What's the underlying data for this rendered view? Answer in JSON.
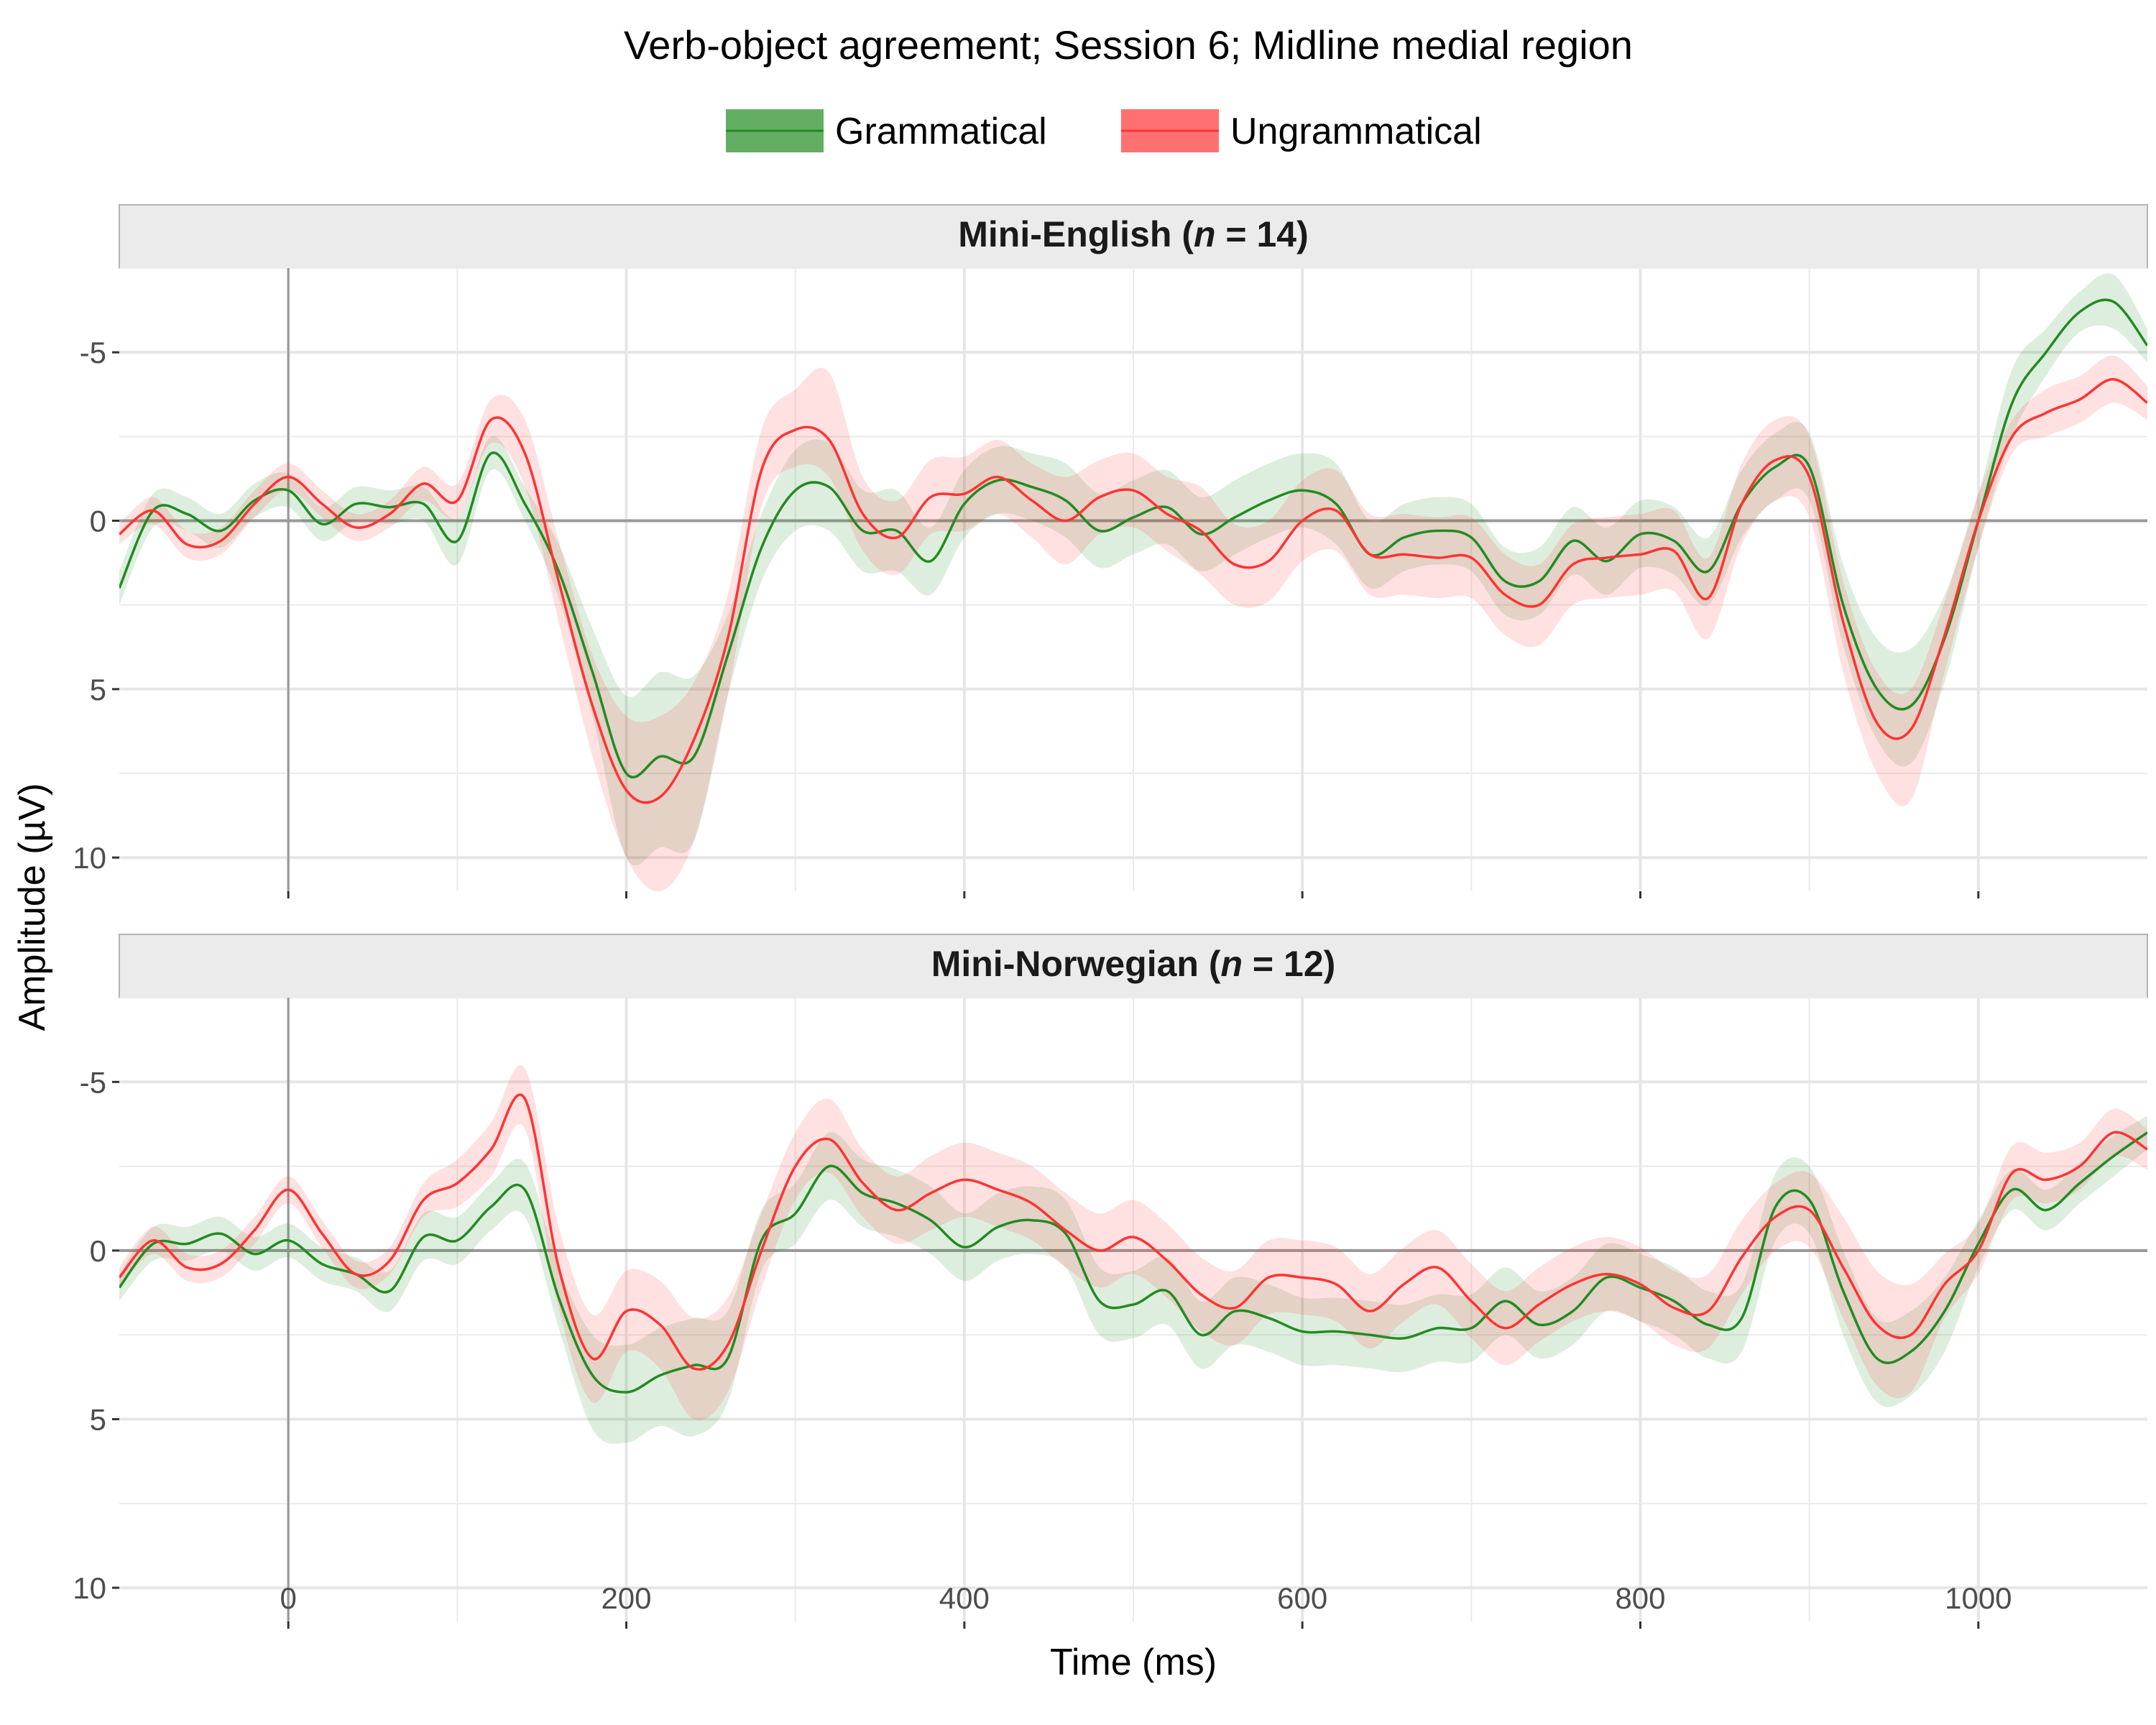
{
  "chart_data": {
    "type": "line",
    "title": "Verb-object agreement; Session 6; Midline medial region",
    "xlabel": "Time (ms)",
    "ylabel": "Amplitude (µV)",
    "xlim": [
      -100,
      1100
    ],
    "ylim_reversed": [
      -7.5,
      11
    ],
    "xticks": [
      "0",
      "200",
      "400",
      "600",
      "800",
      "1000"
    ],
    "yticks": [
      "-5",
      "0",
      "5",
      "10"
    ],
    "legend_position": "top",
    "colors": {
      "Grammatical": "#228B22",
      "Ungrammatical": "#FF3333"
    },
    "series_names": [
      "Grammatical",
      "Ungrammatical"
    ],
    "panels": [
      {
        "strip_prefix": "Mini-English (",
        "strip_n": "n",
        "strip_suffix": " = 14)",
        "x": [
          -100,
          -80,
          -60,
          -40,
          -20,
          0,
          20,
          40,
          60,
          80,
          100,
          120,
          140,
          160,
          180,
          200,
          220,
          240,
          260,
          280,
          300,
          320,
          340,
          360,
          380,
          400,
          420,
          440,
          460,
          480,
          500,
          520,
          540,
          560,
          580,
          600,
          620,
          640,
          660,
          680,
          700,
          720,
          740,
          760,
          780,
          800,
          820,
          840,
          860,
          880,
          900,
          920,
          940,
          960,
          980,
          1000,
          1020,
          1040,
          1060,
          1080,
          1100
        ],
        "series": [
          {
            "name": "Grammatical",
            "values": [
              2,
              -0.3,
              -0.2,
              0.3,
              -0.6,
              -0.9,
              0.1,
              -0.5,
              -0.4,
              -0.5,
              0.6,
              -2,
              -0.5,
              1.5,
              4.5,
              7.5,
              7,
              7,
              4,
              0.8,
              -0.9,
              -1,
              0.3,
              0.3,
              1.2,
              -0.5,
              -1.2,
              -1,
              -0.6,
              0.3,
              -0.1,
              -0.4,
              0.4,
              -0.1,
              -0.6,
              -0.9,
              -0.5,
              1,
              0.5,
              0.3,
              0.5,
              1.8,
              1.8,
              0.6,
              1.2,
              0.4,
              0.6,
              1.5,
              -0.5,
              -1.6,
              -1.6,
              2.5,
              5,
              5.5,
              3.5,
              0,
              -3.5,
              -5,
              -6.2,
              -6.5,
              -5.2
            ],
            "upper": [
              2.5,
              0.2,
              0.3,
              0.8,
              -0.1,
              -0.4,
              0.6,
              0,
              0.1,
              0,
              1.3,
              -1.5,
              0,
              2.3,
              5.8,
              10,
              9.7,
              9.5,
              5.2,
              1.8,
              0.3,
              0.3,
              1.5,
              1.5,
              2.2,
              0.5,
              -0.2,
              0,
              0.5,
              1.4,
              1,
              0.7,
              1.5,
              1,
              0.5,
              0.2,
              0.7,
              2,
              1.5,
              1.3,
              1.5,
              2.8,
              2.8,
              1.6,
              2.2,
              1.4,
              1.6,
              2.5,
              0.5,
              -0.6,
              -0.6,
              3.7,
              6.5,
              7.2,
              4.8,
              0.8,
              -2.5,
              -4.3,
              -5.6,
              -5.7,
              -4.7
            ],
            "lower": [
              1.5,
              -0.8,
              -0.7,
              -0.2,
              -1.1,
              -1.4,
              -0.4,
              -1,
              -0.9,
              -1,
              -0.1,
              -2.5,
              -1,
              0.7,
              3.2,
              5.2,
              4.5,
              4.6,
              2.8,
              -0.2,
              -2.1,
              -2.3,
              -0.9,
              -0.9,
              0.2,
              -1.5,
              -2.2,
              -2,
              -1.7,
              -0.8,
              -1.2,
              -1.5,
              -0.7,
              -1.2,
              -1.7,
              -2,
              -1.7,
              0,
              -0.5,
              -0.7,
              -0.5,
              0.8,
              0.8,
              -0.4,
              0.2,
              -0.6,
              -0.4,
              0.5,
              -1.5,
              -2.6,
              -2.6,
              1.3,
              3.5,
              3.8,
              2.2,
              -0.8,
              -4.5,
              -5.7,
              -6.8,
              -7.3,
              -5.7
            ]
          },
          {
            "name": "Ungrammatical",
            "values": [
              0.4,
              -0.3,
              0.7,
              0.6,
              -0.5,
              -1.3,
              -0.5,
              0.2,
              -0.2,
              -1.1,
              -0.6,
              -3,
              -2,
              1.8,
              5.5,
              8,
              8.2,
              6.5,
              3.5,
              -1.5,
              -2.7,
              -2.4,
              -0.2,
              0.5,
              -0.7,
              -0.8,
              -1.3,
              -0.6,
              0,
              -0.7,
              -0.9,
              -0.2,
              0.3,
              1.3,
              1.2,
              0,
              -0.3,
              1,
              1,
              1.1,
              1.1,
              2.2,
              2.5,
              1.3,
              1.1,
              1,
              0.9,
              2.3,
              -0.5,
              -1.8,
              -1.3,
              3,
              6,
              6.2,
              3.4,
              0,
              -2.5,
              -3.2,
              -3.6,
              -4.2,
              -3.5
            ],
            "upper": [
              0.7,
              0.1,
              1.1,
              1,
              -0.1,
              -0.9,
              -0.1,
              0.6,
              0.2,
              -0.6,
              -0.1,
              -2.3,
              -1,
              3,
              7,
              10,
              11,
              9.5,
              5.2,
              -0.4,
              -1.6,
              -1.3,
              0.9,
              1.6,
              0.4,
              0.3,
              -0.2,
              0.5,
              1.3,
              0.4,
              0.2,
              0.9,
              1.6,
              2.5,
              2.4,
              1.2,
              0.9,
              2.2,
              2.2,
              2.3,
              2.3,
              3.4,
              3.7,
              2.5,
              2.3,
              2.2,
              2.1,
              3.5,
              0.7,
              -0.6,
              -0.1,
              4.5,
              7.5,
              8.3,
              4.5,
              0.8,
              -2,
              -2.5,
              -2.9,
              -3.5,
              -3
            ],
            "lower": [
              0.1,
              -0.7,
              0.3,
              0.2,
              -0.9,
              -1.7,
              -0.9,
              -0.2,
              -0.6,
              -1.6,
              -1.1,
              -3.6,
              -3,
              0.6,
              4,
              5.8,
              5.8,
              4.8,
              2.2,
              -2.7,
              -3.9,
              -4.4,
              -1.3,
              -0.6,
              -1.8,
              -1.9,
              -2.4,
              -1.7,
              -1.3,
              -1.8,
              -2,
              -1.3,
              -1,
              0.1,
              0,
              -1.2,
              -1.5,
              -0.2,
              -0.2,
              -0.1,
              -0.1,
              1,
              1.3,
              0.1,
              -0.1,
              -0.2,
              -0.3,
              1.1,
              -1.7,
              -3,
              -2.5,
              1.8,
              4.5,
              5,
              2.4,
              -0.8,
              -3,
              -3.9,
              -4.3,
              -4.9,
              -4
            ]
          }
        ]
      },
      {
        "strip_prefix": "Mini-Norwegian (",
        "strip_n": "n",
        "strip_suffix": " = 12)",
        "x": [
          -100,
          -80,
          -60,
          -40,
          -20,
          0,
          20,
          40,
          60,
          80,
          100,
          120,
          140,
          160,
          180,
          200,
          220,
          240,
          260,
          280,
          300,
          320,
          340,
          360,
          380,
          400,
          420,
          440,
          460,
          480,
          500,
          520,
          540,
          560,
          580,
          600,
          620,
          640,
          660,
          680,
          700,
          720,
          740,
          760,
          780,
          800,
          820,
          840,
          860,
          880,
          900,
          920,
          940,
          960,
          980,
          1000,
          1020,
          1040,
          1060,
          1080,
          1100
        ],
        "series": [
          {
            "name": "Grammatical",
            "values": [
              1.1,
              -0.2,
              -0.2,
              -0.5,
              0.1,
              -0.3,
              0.4,
              0.7,
              1.2,
              -0.4,
              -0.3,
              -1.3,
              -1.8,
              1.4,
              3.7,
              4.2,
              3.7,
              3.4,
              3.2,
              -0.3,
              -1.1,
              -2.5,
              -1.7,
              -1.4,
              -0.9,
              -0.1,
              -0.7,
              -0.9,
              -0.5,
              1.5,
              1.6,
              1.2,
              2.5,
              1.8,
              2,
              2.4,
              2.4,
              2.5,
              2.6,
              2.3,
              2.3,
              1.5,
              2.2,
              1.8,
              0.8,
              1.1,
              1.5,
              2.2,
              2,
              -1.3,
              -1.5,
              1.2,
              3.2,
              3,
              1.8,
              -0.2,
              -1.8,
              -1.2,
              -2,
              -2.8,
              -3.5
            ],
            "upper": [
              1.5,
              0.3,
              0.3,
              0,
              0.6,
              0.2,
              0.9,
              1.2,
              1.8,
              0.3,
              0.4,
              -0.6,
              -1,
              2.3,
              5.3,
              5.7,
              5.2,
              5.5,
              4.5,
              0.6,
              -0.2,
              -1.5,
              -0.7,
              -0.4,
              0.1,
              0.9,
              0.3,
              0.1,
              0.5,
              2.5,
              2.6,
              2.2,
              3.5,
              2.8,
              3,
              3.4,
              3.4,
              3.5,
              3.6,
              3.3,
              3.3,
              2.5,
              3.2,
              2.8,
              1.8,
              2.1,
              2.5,
              3.2,
              3,
              -0.3,
              -0.5,
              2.5,
              4.5,
              4.3,
              3,
              0.5,
              -1.2,
              -0.6,
              -1.4,
              -2.2,
              -3
            ],
            "lower": [
              0.7,
              -0.7,
              -0.7,
              -1,
              -0.4,
              -0.8,
              -0.1,
              0.2,
              0.6,
              -1.1,
              -1,
              -2,
              -2.6,
              0.5,
              2.5,
              2.8,
              2.3,
              2,
              1.8,
              -1.2,
              -2,
              -3.5,
              -2.7,
              -2.4,
              -1.9,
              -1.1,
              -1.7,
              -1.9,
              -1.5,
              0.5,
              0.6,
              0.2,
              1.5,
              0.8,
              1,
              1.4,
              1.4,
              1.5,
              1.6,
              1.3,
              1.3,
              0.5,
              1.2,
              0.8,
              -0.2,
              0.1,
              0.5,
              1.2,
              1,
              -2.3,
              -2.5,
              0,
              2,
              1.8,
              0.8,
              -0.9,
              -2.4,
              -1.8,
              -2.6,
              -3.4,
              -4
            ]
          },
          {
            "name": "Ungrammatical",
            "values": [
              0.8,
              -0.3,
              0.5,
              0.4,
              -0.6,
              -1.8,
              -0.5,
              0.7,
              0.3,
              -1.5,
              -2,
              -3,
              -4.5,
              0.5,
              3.2,
              1.8,
              2.2,
              3.5,
              2.8,
              0,
              -2.5,
              -3.3,
              -2,
              -1.2,
              -1.7,
              -2.1,
              -1.8,
              -1.4,
              -0.6,
              0,
              -0.4,
              0.3,
              1.3,
              1.7,
              0.8,
              0.8,
              1,
              1.8,
              1,
              0.5,
              1.5,
              2.3,
              1.6,
              1,
              0.7,
              1,
              1.7,
              1.8,
              0.2,
              -1,
              -1.2,
              0.5,
              2.2,
              2.5,
              1,
              0,
              -2.3,
              -2.1,
              -2.5,
              -3.5,
              -3
            ],
            "upper": [
              1.1,
              0.1,
              0.9,
              0.8,
              -0.2,
              -1.4,
              -0.1,
              1.1,
              0.7,
              -1,
              -1.3,
              -2.2,
              -3.6,
              1.7,
              4.5,
              3,
              3.5,
              5,
              4.2,
              1.1,
              -1.5,
              -2.3,
              -1,
              -0.2,
              -0.6,
              -1,
              -0.7,
              -0.3,
              0.5,
              1.1,
              0.7,
              1.4,
              2.4,
              2.8,
              1.9,
              1.9,
              2.1,
              2.9,
              2.1,
              1.6,
              2.6,
              3.4,
              2.7,
              2.1,
              1.8,
              2.1,
              2.8,
              2.9,
              1.3,
              0,
              -0.1,
              2,
              4,
              4.2,
              2,
              0.7,
              -1.5,
              -1.4,
              -1.8,
              -2.8,
              -2.4
            ],
            "lower": [
              0.5,
              -0.7,
              0.1,
              0,
              -1,
              -2.2,
              -0.9,
              0.3,
              -0.1,
              -2,
              -2.7,
              -3.8,
              -5.4,
              -0.7,
              1.9,
              0.6,
              0.9,
              2,
              1.4,
              -1.1,
              -3.5,
              -4.5,
              -3,
              -2.2,
              -2.8,
              -3.2,
              -2.9,
              -2.5,
              -1.7,
              -1.1,
              -1.5,
              -0.8,
              0.2,
              0.6,
              -0.3,
              -0.3,
              -0.1,
              0.7,
              -0.1,
              -0.6,
              0.4,
              1.2,
              0.5,
              -0.1,
              -0.4,
              -0.1,
              0.6,
              0.7,
              -0.9,
              -2,
              -2.3,
              -1,
              0.6,
              1,
              0.1,
              -0.8,
              -3.1,
              -2.9,
              -3.2,
              -4.2,
              -3.6
            ]
          }
        ]
      }
    ]
  }
}
